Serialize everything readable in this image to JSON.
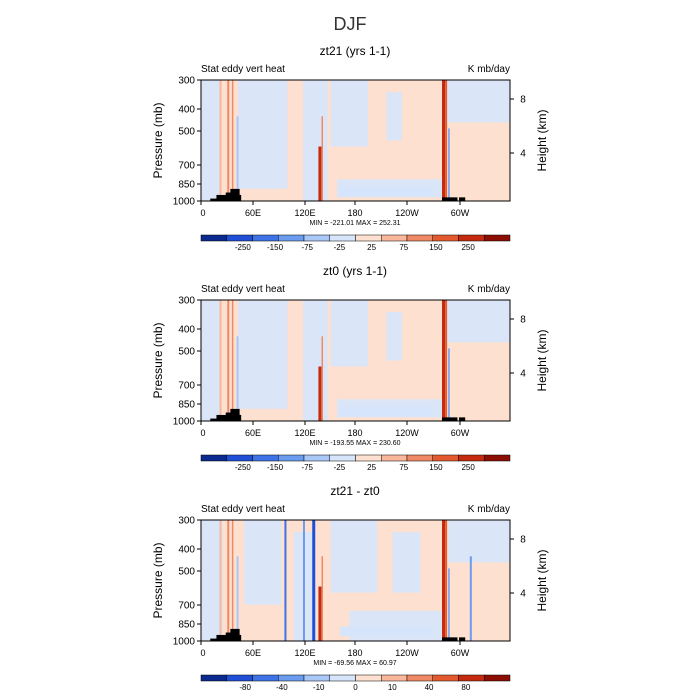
{
  "figure": {
    "title": "DJF"
  },
  "colors": {
    "black": "#000000",
    "terrain": "#000000",
    "palette_9": [
      "#0b2a8f",
      "#1f4fd6",
      "#3d73e6",
      "#6c9cf0",
      "#a9c7f7",
      "#d6e5fb",
      "#fde0cf",
      "#f8b79b",
      "#ef8a64",
      "#e35a2f",
      "#c42a0f",
      "#8a0e03"
    ],
    "palette_6": [
      "#0b2a8f",
      "#1f4fd6",
      "#3d73e6",
      "#6c9cf0",
      "#a9c7f7",
      "#d6e5fb",
      "#fde0cf",
      "#f8b79b",
      "#ef8a64",
      "#e35a2f",
      "#c42a0f",
      "#8a0e03"
    ]
  },
  "chart_data": [
    {
      "type": "heatmap",
      "title": "zt21 (yrs 1-1)",
      "left_label": "Stat eddy vert heat",
      "right_label": "K mb/day",
      "ylabel": "Pressure (mb)",
      "y2label": "Height (km)",
      "x_ticks": [
        "0",
        "60E",
        "120E",
        "180",
        "120W",
        "60W"
      ],
      "y_ticks": [
        "300",
        "400",
        "500",
        "700",
        "850",
        "1000"
      ],
      "y2_ticks": [
        "8",
        "4"
      ],
      "stats": "MIN = -221.01   MAX = 252.31",
      "colorbar": {
        "labels": [
          "-250",
          "-150",
          "-75",
          "-25",
          "25",
          "75",
          "150",
          "250"
        ]
      },
      "background": "#fde0cf",
      "background_low": "#d6e5fb"
    },
    {
      "type": "heatmap",
      "title": "zt0 (yrs 1-1)",
      "left_label": "Stat eddy vert heat",
      "right_label": "K mb/day",
      "ylabel": "Pressure (mb)",
      "y2label": "Height (km)",
      "x_ticks": [
        "0",
        "60E",
        "120E",
        "180",
        "120W",
        "60W"
      ],
      "y_ticks": [
        "300",
        "400",
        "500",
        "700",
        "850",
        "1000"
      ],
      "y2_ticks": [
        "8",
        "4"
      ],
      "stats": "MIN = -193.55   MAX = 230.60",
      "colorbar": {
        "labels": [
          "-250",
          "-150",
          "-75",
          "-25",
          "25",
          "75",
          "150",
          "250"
        ]
      },
      "background": "#fde0cf",
      "background_low": "#d6e5fb"
    },
    {
      "type": "heatmap",
      "title": "zt21 - zt0",
      "left_label": "Stat eddy vert heat",
      "right_label": "K mb/day",
      "ylabel": "Pressure (mb)",
      "y2label": "Height (km)",
      "x_ticks": [
        "0",
        "60E",
        "120E",
        "180",
        "120W",
        "60W"
      ],
      "y_ticks": [
        "300",
        "400",
        "500",
        "700",
        "850",
        "1000"
      ],
      "y2_ticks": [
        "8",
        "4"
      ],
      "stats": "MIN = -69.56   MAX =  60.97",
      "colorbar": {
        "labels": [
          "-80",
          "-40",
          "-10",
          "0",
          "10",
          "40",
          "80"
        ]
      },
      "background": "#fde0cf",
      "background_low": "#d6e5fb"
    }
  ]
}
